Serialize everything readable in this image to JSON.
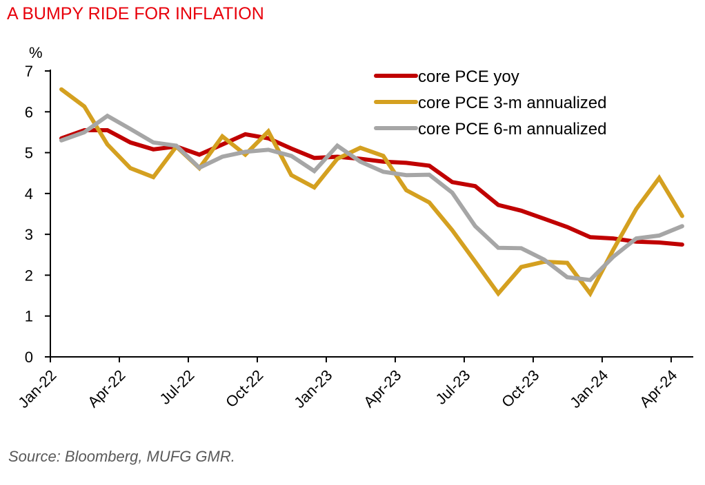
{
  "title": "A BUMPY RIDE FOR INFLATION",
  "source": "Source: Bloomberg, MUFG GMR.",
  "colors": {
    "title": "#e8000b",
    "core_pce_yoy": "#c00000",
    "core_pce_3m": "#d4a020",
    "core_pce_6m": "#a6a6a6"
  },
  "chart_data": {
    "type": "line",
    "title": "A BUMPY RIDE FOR INFLATION",
    "xlabel": "",
    "ylabel": "%",
    "ylim": [
      0,
      7
    ],
    "yticks": [
      0,
      1,
      2,
      3,
      4,
      5,
      6,
      7
    ],
    "grid": false,
    "legend_position": "top-right",
    "x": [
      "Jan-22",
      "Feb-22",
      "Mar-22",
      "Apr-22",
      "May-22",
      "Jun-22",
      "Jul-22",
      "Aug-22",
      "Sep-22",
      "Oct-22",
      "Nov-22",
      "Dec-22",
      "Jan-23",
      "Feb-23",
      "Mar-23",
      "Apr-23",
      "May-23",
      "Jun-23",
      "Jul-23",
      "Aug-23",
      "Sep-23",
      "Oct-23",
      "Nov-23",
      "Dec-23",
      "Jan-24",
      "Feb-24",
      "Mar-24",
      "Apr-24"
    ],
    "xtick_labels": [
      "Jan-22",
      "Apr-22",
      "Jul-22",
      "Oct-22",
      "Jan-23",
      "Apr-23",
      "Jul-23",
      "Oct-23",
      "Jan-24",
      "Apr-24"
    ],
    "series": [
      {
        "name": "core PCE yoy",
        "color": "#c00000",
        "values": [
          5.35,
          5.55,
          5.55,
          5.25,
          5.08,
          5.15,
          4.95,
          5.2,
          5.45,
          5.35,
          5.1,
          4.87,
          4.9,
          4.85,
          4.78,
          4.75,
          4.68,
          4.28,
          4.18,
          3.72,
          3.58,
          3.38,
          3.18,
          2.93,
          2.9,
          2.82,
          2.8,
          2.75
        ]
      },
      {
        "name": "core PCE 3-m annualized",
        "color": "#d4a020",
        "values": [
          6.55,
          6.13,
          5.2,
          4.62,
          4.4,
          5.15,
          4.62,
          5.4,
          4.95,
          5.52,
          4.45,
          4.15,
          4.85,
          5.12,
          4.92,
          4.08,
          3.78,
          3.1,
          2.33,
          1.55,
          2.2,
          2.33,
          2.3,
          1.55,
          2.62,
          3.62,
          4.38,
          3.45
        ]
      },
      {
        "name": "core PCE 6-m annualized",
        "color": "#a6a6a6",
        "values": [
          5.3,
          5.5,
          5.9,
          5.58,
          5.25,
          5.17,
          4.63,
          4.9,
          5.02,
          5.07,
          4.92,
          4.55,
          5.17,
          4.78,
          4.53,
          4.45,
          4.46,
          4.02,
          3.2,
          2.67,
          2.66,
          2.38,
          1.95,
          1.88,
          2.45,
          2.9,
          2.97,
          3.2
        ]
      }
    ]
  }
}
